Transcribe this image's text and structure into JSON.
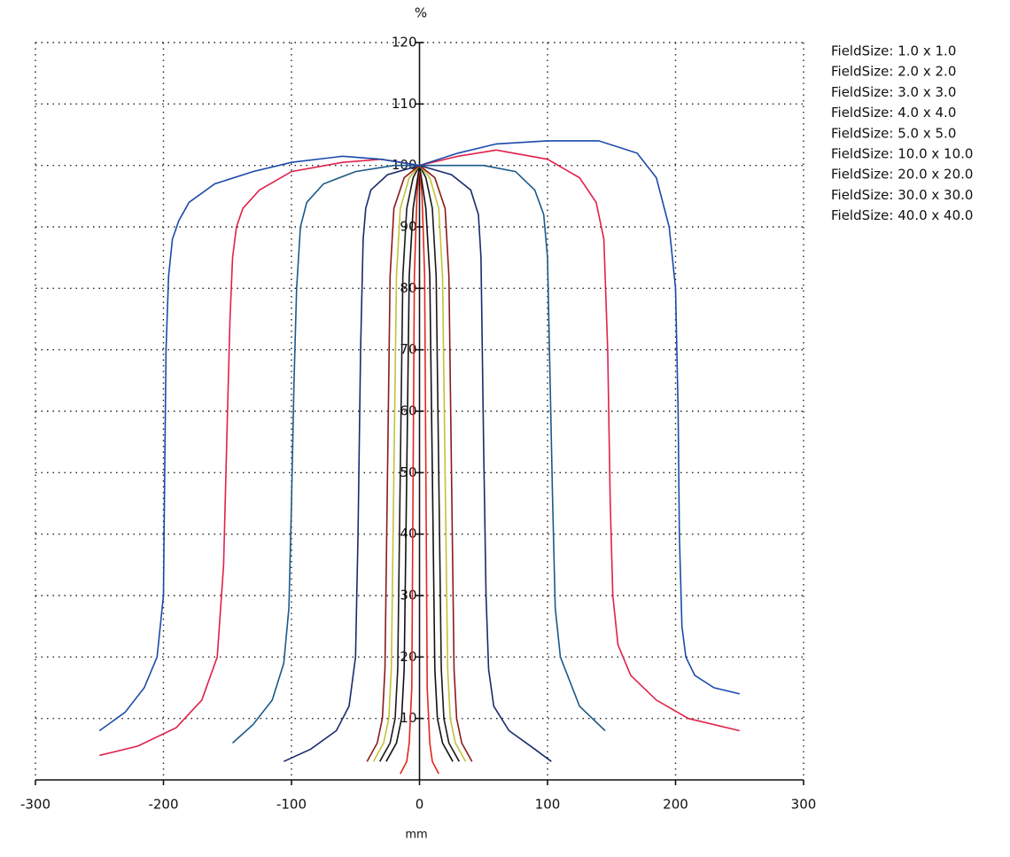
{
  "chart_data": {
    "type": "line",
    "y_label": "%",
    "x_label": "mm",
    "xlim": [
      -300,
      300
    ],
    "xticks": [
      -300,
      -200,
      -100,
      0,
      100,
      200,
      300
    ],
    "ylim": [
      0,
      120
    ],
    "yticks": [
      10,
      20,
      30,
      40,
      50,
      60,
      70,
      80,
      90,
      100,
      110,
      120
    ],
    "grid": true,
    "legend": "right",
    "series": [
      {
        "name": "FieldSize: 1.0 x 1.0",
        "color": "#e3261c",
        "x": [
          -15,
          -10,
          -8,
          -6,
          -5,
          -4,
          -2,
          0,
          2,
          4,
          5,
          6,
          8,
          10,
          15
        ],
        "values": [
          1,
          3,
          6,
          15,
          50,
          82,
          95,
          100,
          95,
          82,
          50,
          15,
          6,
          3,
          1
        ]
      },
      {
        "name": "FieldSize: 2.0 x 2.0",
        "color": "#111111",
        "x": [
          -26,
          -18,
          -14,
          -12,
          -10,
          -8,
          -5,
          0,
          5,
          8,
          10,
          12,
          14,
          18,
          26
        ],
        "values": [
          3,
          6,
          10,
          18,
          50,
          82,
          93,
          100,
          93,
          82,
          50,
          18,
          10,
          6,
          3
        ]
      },
      {
        "name": "FieldSize: 3.0 x 3.0",
        "color": "#1a1a1a",
        "x": [
          -31,
          -23,
          -19,
          -17,
          -15,
          -13,
          -10,
          -5,
          0,
          5,
          10,
          13,
          15,
          17,
          19,
          23,
          31
        ],
        "values": [
          3,
          6,
          10,
          18,
          50,
          82,
          93,
          98,
          100,
          98,
          93,
          82,
          50,
          18,
          10,
          6,
          3
        ]
      },
      {
        "name": "FieldSize: 4.0 x 4.0",
        "color": "#c2c23a",
        "x": [
          -36,
          -28,
          -24,
          -22,
          -20,
          -18,
          -15,
          -8,
          0,
          8,
          15,
          18,
          20,
          22,
          24,
          28,
          36
        ],
        "values": [
          3,
          6,
          10,
          18,
          50,
          82,
          93,
          98,
          100,
          98,
          93,
          82,
          50,
          18,
          10,
          6,
          3
        ]
      },
      {
        "name": "FieldSize: 5.0 x 5.0",
        "color": "#8b1a1a",
        "x": [
          -41,
          -33,
          -29,
          -27,
          -25,
          -23,
          -20,
          -12,
          0,
          12,
          20,
          23,
          25,
          27,
          29,
          33,
          41
        ],
        "values": [
          3,
          6,
          10,
          18,
          50,
          82,
          93,
          98,
          100,
          98,
          93,
          82,
          50,
          18,
          10,
          6,
          3
        ]
      },
      {
        "name": "FieldSize: 10.0 x 10.0",
        "color": "#1a2a6c",
        "x": [
          -106,
          -85,
          -65,
          -55,
          -50,
          -48,
          -46,
          -44,
          -42,
          -38,
          -25,
          0,
          25,
          40,
          46,
          48,
          50,
          52,
          54,
          58,
          70,
          90,
          103
        ],
        "values": [
          3,
          5,
          8,
          12,
          20,
          40,
          70,
          88,
          93,
          96,
          98.5,
          100,
          98.5,
          96,
          92,
          85,
          55,
          30,
          18,
          12,
          8,
          5,
          3
        ]
      },
      {
        "name": "FieldSize: 20.0 x 20.0",
        "color": "#1a5a8a",
        "x": [
          -146,
          -130,
          -115,
          -106,
          -102,
          -100,
          -98,
          -96,
          -93,
          -88,
          -75,
          -50,
          -20,
          0,
          20,
          50,
          75,
          90,
          97,
          100,
          102,
          104,
          106,
          110,
          125,
          145
        ],
        "values": [
          6,
          9,
          13,
          19,
          28,
          45,
          65,
          80,
          90,
          94,
          97,
          99,
          100,
          100,
          100,
          100,
          99,
          96,
          92,
          85,
          65,
          45,
          28,
          20,
          12,
          8
        ]
      },
      {
        "name": "FieldSize: 30.0 x 30.0",
        "color": "#e0204a",
        "x": [
          -250,
          -220,
          -190,
          -170,
          -158,
          -153,
          -150,
          -148,
          -146,
          -143,
          -138,
          -125,
          -100,
          -60,
          -30,
          0,
          30,
          60,
          100,
          125,
          138,
          144,
          147,
          149,
          151,
          155,
          165,
          185,
          210,
          250
        ],
        "values": [
          4,
          5.5,
          8.5,
          13,
          20,
          35,
          60,
          75,
          85,
          90,
          93,
          96,
          99,
          100.5,
          101,
          100,
          101.5,
          102.5,
          101,
          98,
          94,
          88,
          70,
          45,
          30,
          22,
          17,
          13,
          10,
          8
        ]
      },
      {
        "name": "FieldSize: 40.0 x 40.0",
        "color": "#1a4aaa",
        "x": [
          -250,
          -230,
          -215,
          -205,
          -200,
          -199,
          -198,
          -196,
          -193,
          -188,
          -180,
          -160,
          -130,
          -100,
          -60,
          -30,
          0,
          30,
          60,
          100,
          140,
          170,
          185,
          195,
          200,
          202,
          203,
          205,
          208,
          215,
          230,
          250
        ],
        "values": [
          8,
          11,
          15,
          20,
          30,
          50,
          70,
          82,
          88,
          91,
          94,
          97,
          99,
          100.5,
          101.5,
          101,
          100,
          102,
          103.5,
          104,
          104,
          102,
          98,
          90,
          80,
          60,
          40,
          25,
          20,
          17,
          15,
          14
        ]
      }
    ]
  }
}
